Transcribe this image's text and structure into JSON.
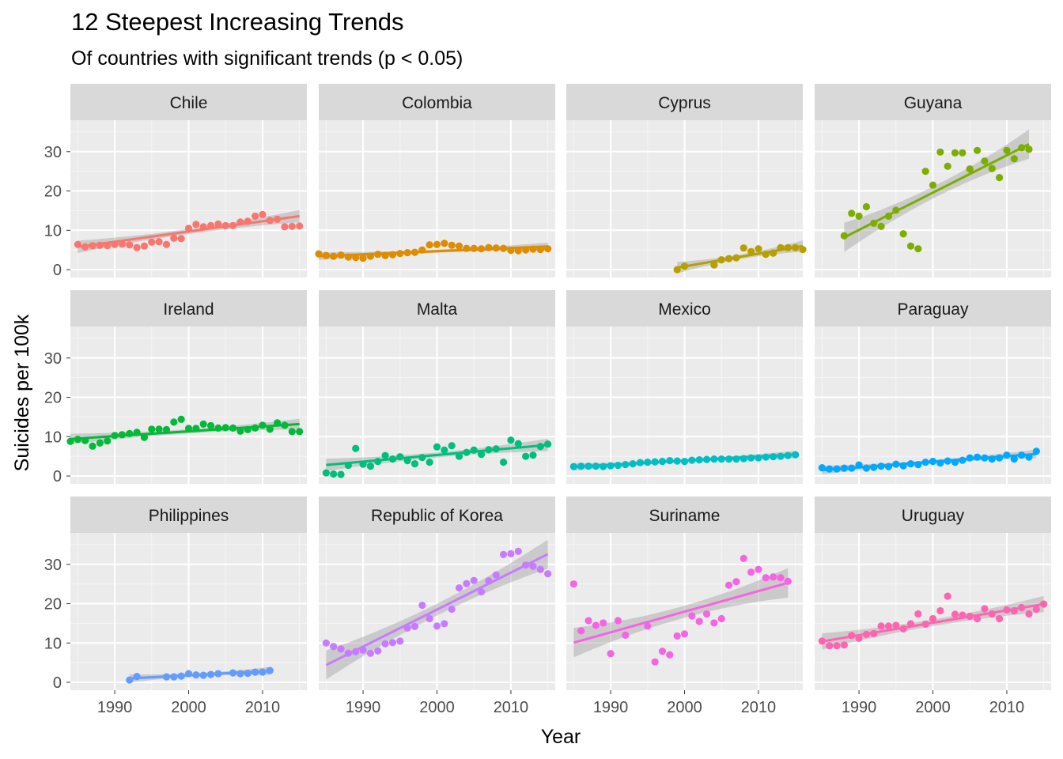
{
  "title": "12 Steepest Increasing Trends",
  "subtitle": "Of countries with significant trends (p < 0.05)",
  "chart_data": {
    "type": "scatter",
    "facet_layout": "4 columns x 3 rows",
    "xlabel": "Year",
    "ylabel": "Suicides per 100k",
    "xlim": [
      1984,
      2016
    ],
    "ylim": [
      -2,
      38
    ],
    "x_ticks": [
      1990,
      2000,
      2010
    ],
    "y_ticks": [
      0,
      10,
      20,
      30
    ],
    "grid": true,
    "smooth": "linear fit with grey confidence band",
    "panels": [
      {
        "name": "Chile",
        "color": "#F8766D",
        "x": [
          1985,
          1986,
          1987,
          1988,
          1989,
          1990,
          1991,
          1992,
          1993,
          1994,
          1995,
          1996,
          1997,
          1998,
          1999,
          2000,
          2001,
          2002,
          2003,
          2004,
          2005,
          2006,
          2007,
          2008,
          2009,
          2010,
          2011,
          2012,
          2013,
          2014,
          2015
        ],
        "y": [
          6.4,
          5.8,
          6.1,
          6.2,
          6.1,
          6.4,
          6.5,
          6.3,
          5.6,
          6.0,
          7.0,
          7.1,
          6.4,
          8.0,
          7.9,
          10.5,
          11.5,
          10.9,
          11.2,
          11.6,
          11.2,
          11.2,
          12.1,
          12.3,
          13.6,
          14.0,
          12.5,
          12.8,
          10.9,
          11.0,
          11.1
        ],
        "trend": [
          5.8,
          13.6
        ]
      },
      {
        "name": "Colombia",
        "color": "#DE8C00",
        "x": [
          1984,
          1985,
          1986,
          1987,
          1988,
          1989,
          1990,
          1991,
          1992,
          1993,
          1994,
          1995,
          1996,
          1997,
          1998,
          1999,
          2000,
          2001,
          2002,
          2003,
          2004,
          2005,
          2006,
          2007,
          2008,
          2009,
          2010,
          2011,
          2012,
          2013,
          2014,
          2015
        ],
        "y": [
          4.0,
          3.6,
          3.4,
          3.7,
          3.2,
          3.1,
          2.9,
          3.4,
          3.9,
          3.6,
          3.8,
          4.1,
          4.3,
          4.4,
          5.0,
          6.3,
          6.4,
          6.7,
          6.2,
          6.0,
          5.4,
          5.4,
          5.3,
          5.6,
          5.5,
          5.4,
          4.9,
          4.8,
          5.0,
          5.2,
          5.1,
          5.3
        ],
        "trend": [
          3.4,
          5.9
        ]
      },
      {
        "name": "Cyprus",
        "color": "#B79F00",
        "x": [
          1999,
          2000,
          2004,
          2005,
          2006,
          2007,
          2008,
          2009,
          2010,
          2011,
          2012,
          2013,
          2014,
          2015,
          2016
        ],
        "y": [
          0.0,
          0.9,
          1.2,
          2.5,
          2.8,
          3.0,
          5.5,
          4.6,
          5.3,
          3.9,
          4.2,
          5.6,
          5.6,
          5.6,
          5.1
        ],
        "trend": [
          0.5,
          6.0
        ]
      },
      {
        "name": "Guyana",
        "color": "#7CAE00",
        "x": [
          1988,
          1989,
          1990,
          1991,
          1992,
          1993,
          1994,
          1995,
          1996,
          1997,
          1998,
          1999,
          2000,
          2001,
          2002,
          2003,
          2004,
          2005,
          2006,
          2007,
          2008,
          2009,
          2010,
          2011,
          2012,
          2013
        ],
        "y": [
          8.6,
          14.3,
          13.6,
          16.0,
          11.8,
          11.0,
          13.6,
          15.1,
          9.1,
          6.0,
          5.3,
          25.0,
          21.5,
          29.9,
          26.3,
          29.7,
          29.7,
          25.6,
          30.3,
          27.6,
          25.7,
          23.4,
          30.3,
          28.2,
          31.0,
          30.6
        ],
        "trend": [
          8.2,
          31.9
        ]
      },
      {
        "name": "Ireland",
        "color": "#00BA38",
        "x": [
          1984,
          1985,
          1986,
          1987,
          1988,
          1989,
          1990,
          1991,
          1992,
          1993,
          1994,
          1995,
          1996,
          1997,
          1998,
          1999,
          2000,
          2001,
          2002,
          2003,
          2004,
          2005,
          2006,
          2007,
          2008,
          2009,
          2010,
          2011,
          2012,
          2013,
          2014,
          2015
        ],
        "y": [
          8.8,
          9.3,
          9.0,
          7.6,
          8.4,
          8.9,
          10.3,
          10.5,
          10.8,
          11.1,
          9.8,
          11.9,
          11.9,
          11.8,
          13.7,
          14.4,
          12.1,
          12.1,
          13.2,
          12.8,
          12.2,
          12.3,
          12.2,
          11.4,
          11.8,
          12.2,
          12.9,
          11.9,
          13.5,
          12.9,
          11.3,
          11.3
        ],
        "trend": [
          9.4,
          13.2
        ]
      },
      {
        "name": "Malta",
        "color": "#00BF7D",
        "x": [
          1985,
          1986,
          1987,
          1988,
          1989,
          1990,
          1991,
          1992,
          1993,
          1994,
          1995,
          1996,
          1997,
          1998,
          1999,
          2000,
          2001,
          2002,
          2003,
          2004,
          2005,
          2006,
          2007,
          2008,
          2009,
          2010,
          2011,
          2012,
          2013,
          2014,
          2015
        ],
        "y": [
          0.8,
          0.5,
          0.4,
          2.7,
          7.0,
          3.0,
          2.5,
          3.7,
          5.2,
          4.3,
          4.9,
          3.9,
          3.1,
          4.7,
          3.5,
          7.4,
          6.6,
          7.7,
          5.0,
          6.0,
          6.6,
          5.5,
          6.7,
          6.9,
          3.5,
          9.1,
          8.2,
          5.0,
          5.3,
          7.5,
          8.1
        ],
        "trend": [
          2.8,
          7.9
        ]
      },
      {
        "name": "Mexico",
        "color": "#00BFC4",
        "x": [
          1985,
          1986,
          1987,
          1988,
          1989,
          1990,
          1991,
          1992,
          1993,
          1994,
          1995,
          1996,
          1997,
          1998,
          1999,
          2000,
          2001,
          2002,
          2003,
          2004,
          2005,
          2006,
          2007,
          2008,
          2009,
          2010,
          2011,
          2012,
          2013,
          2014,
          2015
        ],
        "y": [
          2.4,
          2.5,
          2.5,
          2.5,
          2.4,
          2.6,
          2.7,
          2.9,
          3.1,
          3.4,
          3.5,
          3.6,
          3.7,
          3.9,
          3.8,
          3.7,
          4.0,
          4.1,
          4.2,
          4.3,
          4.3,
          4.3,
          4.3,
          4.4,
          4.6,
          4.6,
          4.8,
          4.9,
          5.0,
          5.2,
          5.4
        ],
        "trend": [
          2.3,
          5.5
        ]
      },
      {
        "name": "Paraguay",
        "color": "#00A9FF",
        "x": [
          1985,
          1986,
          1987,
          1988,
          1989,
          1990,
          1991,
          1992,
          1993,
          1994,
          1995,
          1996,
          1997,
          1998,
          1999,
          2000,
          2001,
          2002,
          2003,
          2004,
          2005,
          2006,
          2007,
          2008,
          2009,
          2010,
          2011,
          2012,
          2013,
          2014
        ],
        "y": [
          2.1,
          1.8,
          1.8,
          2.0,
          2.0,
          2.8,
          2.0,
          2.2,
          2.5,
          2.4,
          3.0,
          2.6,
          3.1,
          2.9,
          3.5,
          3.7,
          3.3,
          3.8,
          3.5,
          4.0,
          4.6,
          4.8,
          4.6,
          4.3,
          4.6,
          5.3,
          4.3,
          5.3,
          4.8,
          6.3
        ],
        "trend": [
          1.5,
          5.6
        ]
      },
      {
        "name": "Philippines",
        "color": "#619CFF",
        "x": [
          1992,
          1993,
          1997,
          1998,
          1999,
          2000,
          2001,
          2002,
          2003,
          2004,
          2006,
          2007,
          2008,
          2009,
          2010,
          2011
        ],
        "y": [
          0.6,
          1.5,
          1.4,
          1.4,
          1.6,
          2.2,
          1.9,
          1.8,
          2.0,
          2.2,
          2.4,
          2.2,
          2.3,
          2.6,
          2.6,
          3.0
        ],
        "trend": [
          1.0,
          2.9
        ]
      },
      {
        "name": "Republic of Korea",
        "color": "#C77CFF",
        "x": [
          1985,
          1986,
          1987,
          1988,
          1989,
          1990,
          1991,
          1992,
          1993,
          1994,
          1995,
          1996,
          1997,
          1998,
          1999,
          2000,
          2001,
          2002,
          2003,
          2004,
          2005,
          2006,
          2007,
          2008,
          2009,
          2010,
          2011,
          2012,
          2013,
          2014,
          2015
        ],
        "y": [
          10.0,
          9.1,
          8.5,
          7.4,
          7.8,
          8.2,
          7.4,
          8.0,
          9.8,
          10.1,
          10.5,
          13.8,
          14.2,
          19.6,
          16.2,
          14.3,
          14.9,
          18.6,
          24.0,
          25.1,
          25.9,
          23.0,
          25.8,
          27.3,
          32.5,
          32.7,
          33.3,
          29.8,
          29.5,
          28.7,
          27.6
        ],
        "trend": [
          4.4,
          32.6
        ]
      },
      {
        "name": "Suriname",
        "color": "#F564E3",
        "x": [
          1985,
          1986,
          1987,
          1988,
          1989,
          1990,
          1991,
          1992,
          1995,
          1996,
          1997,
          1998,
          1999,
          2000,
          2001,
          2002,
          2003,
          2004,
          2005,
          2006,
          2007,
          2008,
          2009,
          2010,
          2011,
          2012,
          2013,
          2014
        ],
        "y": [
          25.0,
          13.1,
          15.7,
          14.5,
          15.1,
          7.3,
          15.7,
          12.0,
          14.3,
          5.2,
          7.9,
          7.0,
          11.8,
          12.3,
          16.9,
          15.5,
          17.4,
          15.1,
          16.2,
          24.7,
          25.6,
          31.5,
          28.0,
          28.7,
          26.6,
          26.8,
          26.6,
          25.7
        ],
        "trend": [
          10.1,
          25.3
        ]
      },
      {
        "name": "Uruguay",
        "color": "#FF64B0",
        "x": [
          1985,
          1986,
          1987,
          1988,
          1989,
          1990,
          1991,
          1992,
          1993,
          1994,
          1995,
          1996,
          1997,
          1998,
          1999,
          2000,
          2001,
          2002,
          2003,
          2004,
          2005,
          2006,
          2007,
          2008,
          2009,
          2010,
          2011,
          2012,
          2013,
          2014,
          2015
        ],
        "y": [
          10.5,
          9.3,
          9.3,
          9.5,
          11.9,
          11.2,
          12.2,
          12.4,
          14.3,
          14.3,
          14.5,
          13.6,
          14.9,
          17.4,
          14.8,
          16.2,
          18.2,
          21.9,
          17.3,
          17.1,
          16.8,
          16.2,
          18.7,
          17.4,
          16.2,
          18.4,
          18.2,
          19.0,
          17.4,
          18.6,
          19.9
        ],
        "trend": [
          10.4,
          19.9
        ]
      }
    ]
  }
}
